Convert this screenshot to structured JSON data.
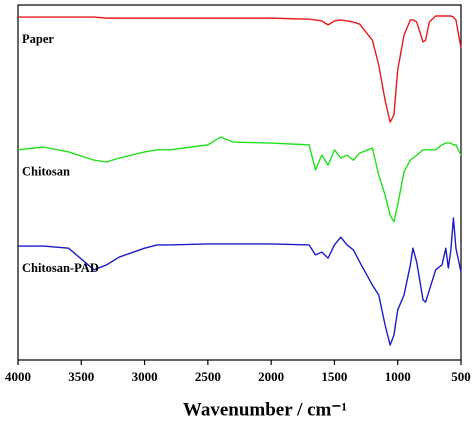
{
  "chart_data": {
    "type": "line",
    "x_label": "Wavenumber / cm⁻¹",
    "x": [
      4000,
      3800,
      3600,
      3400,
      3300,
      3200,
      3000,
      2900,
      2800,
      2500,
      2400,
      2300,
      2000,
      1700,
      1650,
      1600,
      1550,
      1500,
      1450,
      1400,
      1350,
      1300,
      1200,
      1150,
      1100,
      1060,
      1030,
      1000,
      950,
      900,
      880,
      850,
      800,
      780,
      750,
      700,
      650,
      620,
      600,
      580,
      560,
      540,
      500
    ],
    "xlim": [
      4000,
      500
    ],
    "xticks": [
      4000,
      3500,
      3000,
      2500,
      2000,
      1500,
      1000,
      500
    ],
    "ylim": [
      0,
      100
    ],
    "series": [
      {
        "name": "Paper",
        "color": "#e8191c",
        "values": [
          96.6,
          96.6,
          96.6,
          96.6,
          96.3,
          96.3,
          96.3,
          96.3,
          96.3,
          96.3,
          96.3,
          96.3,
          96.3,
          96.0,
          95.8,
          95.5,
          94.4,
          95.5,
          95.8,
          95.5,
          95.2,
          94.6,
          90.1,
          83.1,
          73.2,
          67.0,
          69.0,
          81.7,
          91.5,
          95.8,
          95.8,
          95.2,
          89.6,
          90.1,
          95.2,
          96.9,
          96.9,
          96.9,
          96.9,
          96.9,
          96.6,
          95.8,
          87.9
        ]
      },
      {
        "name": "Chitosan",
        "color": "#22e01c",
        "values": [
          59.2,
          60.0,
          58.6,
          56.3,
          55.8,
          56.9,
          58.6,
          59.2,
          59.2,
          60.6,
          62.8,
          61.4,
          61.1,
          60.6,
          53.5,
          57.7,
          54.9,
          59.2,
          56.9,
          57.7,
          56.3,
          58.3,
          59.7,
          52.1,
          46.5,
          40.8,
          38.9,
          43.7,
          53.0,
          56.3,
          56.9,
          57.7,
          59.2,
          59.2,
          59.2,
          59.2,
          60.6,
          61.1,
          61.1,
          61.1,
          60.6,
          60.6,
          57.7
        ]
      },
      {
        "name": "Chitosan-PAD",
        "color": "#1c1cc8",
        "values": [
          32.1,
          32.1,
          31.5,
          25.4,
          26.8,
          29.0,
          31.5,
          32.4,
          32.4,
          32.7,
          32.7,
          32.7,
          32.7,
          32.4,
          29.6,
          30.4,
          28.7,
          32.4,
          34.6,
          32.4,
          31.0,
          27.6,
          21.1,
          18.3,
          9.9,
          4.2,
          7.0,
          14.1,
          18.3,
          26.8,
          31.5,
          27.6,
          16.9,
          16.3,
          19.7,
          25.4,
          26.8,
          31.5,
          25.9,
          31.0,
          40.0,
          31.5,
          24.8
        ]
      }
    ]
  }
}
